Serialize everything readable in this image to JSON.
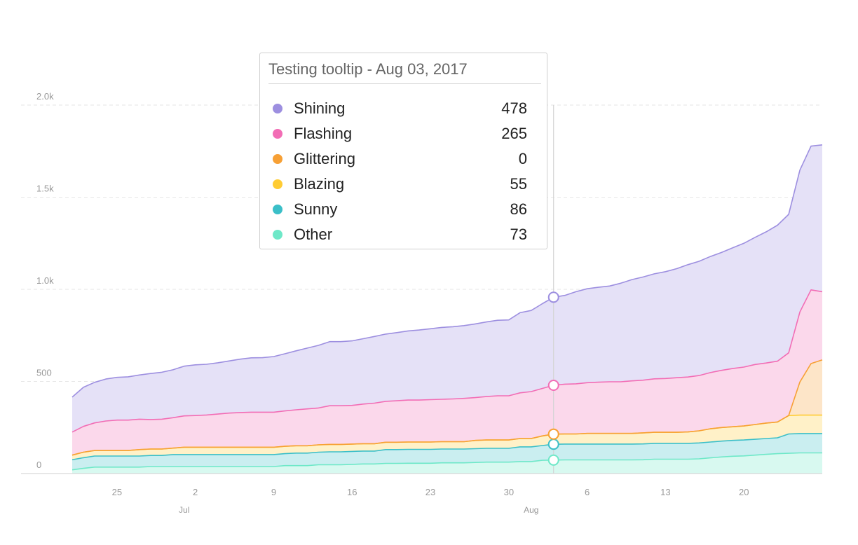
{
  "chart_data": {
    "type": "area",
    "stacked": true,
    "x": [
      "2017-06-21",
      "2017-06-22",
      "2017-06-23",
      "2017-06-24",
      "2017-06-25",
      "2017-06-26",
      "2017-06-27",
      "2017-06-28",
      "2017-06-29",
      "2017-06-30",
      "2017-07-01",
      "2017-07-02",
      "2017-07-03",
      "2017-07-04",
      "2017-07-05",
      "2017-07-06",
      "2017-07-07",
      "2017-07-08",
      "2017-07-09",
      "2017-07-10",
      "2017-07-11",
      "2017-07-12",
      "2017-07-13",
      "2017-07-14",
      "2017-07-15",
      "2017-07-16",
      "2017-07-17",
      "2017-07-18",
      "2017-07-19",
      "2017-07-20",
      "2017-07-21",
      "2017-07-22",
      "2017-07-23",
      "2017-07-24",
      "2017-07-25",
      "2017-07-26",
      "2017-07-27",
      "2017-07-28",
      "2017-07-29",
      "2017-07-30",
      "2017-07-31",
      "2017-08-01",
      "2017-08-02",
      "2017-08-03",
      "2017-08-04",
      "2017-08-05",
      "2017-08-06",
      "2017-08-07",
      "2017-08-08",
      "2017-08-09",
      "2017-08-10",
      "2017-08-11",
      "2017-08-12",
      "2017-08-13",
      "2017-08-14",
      "2017-08-15",
      "2017-08-16",
      "2017-08-17",
      "2017-08-18",
      "2017-08-19",
      "2017-08-20",
      "2017-08-21",
      "2017-08-22",
      "2017-08-23",
      "2017-08-24",
      "2017-08-25",
      "2017-08-26",
      "2017-08-27"
    ],
    "series": [
      {
        "name": "Other",
        "color": "#6ee8c8",
        "values": [
          20,
          28,
          35,
          35,
          35,
          35,
          35,
          38,
          38,
          38,
          38,
          38,
          38,
          38,
          38,
          38,
          38,
          38,
          38,
          43,
          43,
          43,
          48,
          48,
          48,
          50,
          52,
          52,
          55,
          55,
          56,
          56,
          56,
          58,
          58,
          58,
          60,
          62,
          62,
          62,
          65,
          65,
          72,
          73,
          74,
          74,
          74,
          74,
          74,
          74,
          74,
          75,
          78,
          78,
          78,
          78,
          80,
          85,
          90,
          94,
          96,
          100,
          104,
          108,
          110,
          112,
          112,
          112
        ]
      },
      {
        "name": "Sunny",
        "color": "#3bbfc8",
        "values": [
          55,
          58,
          60,
          60,
          60,
          60,
          60,
          60,
          60,
          65,
          65,
          65,
          65,
          65,
          65,
          65,
          65,
          65,
          65,
          65,
          68,
          68,
          68,
          70,
          70,
          70,
          70,
          70,
          75,
          75,
          75,
          75,
          75,
          75,
          75,
          75,
          75,
          75,
          75,
          75,
          80,
          80,
          80,
          86,
          86,
          86,
          86,
          86,
          86,
          86,
          86,
          86,
          86,
          86,
          86,
          86,
          86,
          86,
          86,
          86,
          86,
          86,
          86,
          86,
          105,
          105,
          105,
          105
        ]
      },
      {
        "name": "Blazing",
        "color": "#ffcc33",
        "values": [
          25,
          30,
          30,
          30,
          30,
          30,
          35,
          35,
          35,
          35,
          40,
          40,
          40,
          40,
          40,
          40,
          40,
          40,
          40,
          40,
          40,
          40,
          40,
          40,
          40,
          40,
          40,
          40,
          40,
          40,
          40,
          40,
          40,
          40,
          40,
          40,
          45,
          45,
          45,
          45,
          45,
          45,
          52,
          55,
          55,
          55,
          58,
          58,
          58,
          58,
          58,
          60,
          60,
          60,
          60,
          62,
          66,
          72,
          74,
          74,
          76,
          80,
          84,
          86,
          100,
          100,
          100,
          100
        ]
      },
      {
        "name": "Glittering",
        "color": "#f7a035",
        "values": [
          0,
          0,
          0,
          0,
          0,
          0,
          0,
          0,
          0,
          0,
          0,
          0,
          0,
          0,
          0,
          0,
          0,
          0,
          0,
          0,
          0,
          0,
          0,
          0,
          0,
          0,
          0,
          0,
          0,
          0,
          0,
          0,
          0,
          0,
          0,
          0,
          0,
          0,
          0,
          0,
          0,
          0,
          0,
          0,
          0,
          0,
          0,
          0,
          0,
          0,
          0,
          0,
          0,
          0,
          0,
          0,
          0,
          0,
          0,
          0,
          0,
          0,
          0,
          0,
          0,
          180,
          280,
          300
        ]
      },
      {
        "name": "Flashing",
        "color": "#f26db5",
        "values": [
          125,
          140,
          150,
          160,
          165,
          165,
          165,
          160,
          162,
          165,
          170,
          172,
          175,
          180,
          185,
          188,
          190,
          190,
          190,
          192,
          195,
          200,
          200,
          210,
          210,
          210,
          215,
          220,
          222,
          225,
          228,
          228,
          230,
          230,
          232,
          235,
          232,
          236,
          240,
          240,
          248,
          255,
          258,
          265,
          270,
          272,
          275,
          278,
          280,
          280,
          285,
          286,
          290,
          292,
          296,
          298,
          300,
          305,
          310,
          316,
          320,
          326,
          326,
          330,
          340,
          380,
          400,
          370
        ]
      },
      {
        "name": "Shining",
        "color": "#9d8fe0",
        "values": [
          190,
          212,
          220,
          228,
          232,
          235,
          240,
          250,
          255,
          260,
          270,
          275,
          275,
          278,
          283,
          290,
          295,
          296,
          302,
          310,
          320,
          330,
          340,
          348,
          348,
          350,
          355,
          362,
          365,
          370,
          375,
          380,
          385,
          390,
          392,
          395,
          400,
          405,
          410,
          412,
          435,
          440,
          460,
          478,
          482,
          500,
          510,
          515,
          520,
          535,
          550,
          560,
          570,
          580,
          592,
          610,
          620,
          630,
          640,
          655,
          672,
          690,
          712,
          738,
          752,
          770,
          780,
          797
        ]
      }
    ],
    "ylim": [
      0,
      2000
    ],
    "yticks": [
      0,
      500,
      1000,
      1500,
      2000
    ],
    "ytick_labels": [
      "0",
      "500",
      "1.0k",
      "1.5k",
      "2.0k"
    ],
    "xticks": [
      {
        "date": "2017-06-25",
        "label": "25"
      },
      {
        "date": "2017-07-02",
        "label": "2"
      },
      {
        "date": "2017-07-09",
        "label": "9"
      },
      {
        "date": "2017-07-16",
        "label": "16"
      },
      {
        "date": "2017-07-23",
        "label": "23"
      },
      {
        "date": "2017-07-30",
        "label": "30"
      },
      {
        "date": "2017-08-06",
        "label": "6"
      },
      {
        "date": "2017-08-13",
        "label": "13"
      },
      {
        "date": "2017-08-20",
        "label": "20"
      }
    ],
    "month_labels": [
      {
        "date": "2017-07-01",
        "label": "Jul"
      },
      {
        "date": "2017-08-01",
        "label": "Aug"
      }
    ],
    "grid": true,
    "hover_date": "2017-08-03"
  },
  "tooltip": {
    "title": "Testing tooltip - Aug 03, 2017",
    "rows": [
      {
        "name": "Shining",
        "value": "478",
        "color": "#9d8fe0"
      },
      {
        "name": "Flashing",
        "value": "265",
        "color": "#f26db5"
      },
      {
        "name": "Glittering",
        "value": "0",
        "color": "#f7a035"
      },
      {
        "name": "Blazing",
        "value": "55",
        "color": "#ffcc33"
      },
      {
        "name": "Sunny",
        "value": "86",
        "color": "#3bbfc8"
      },
      {
        "name": "Other",
        "value": "73",
        "color": "#6ee8c8"
      }
    ]
  }
}
